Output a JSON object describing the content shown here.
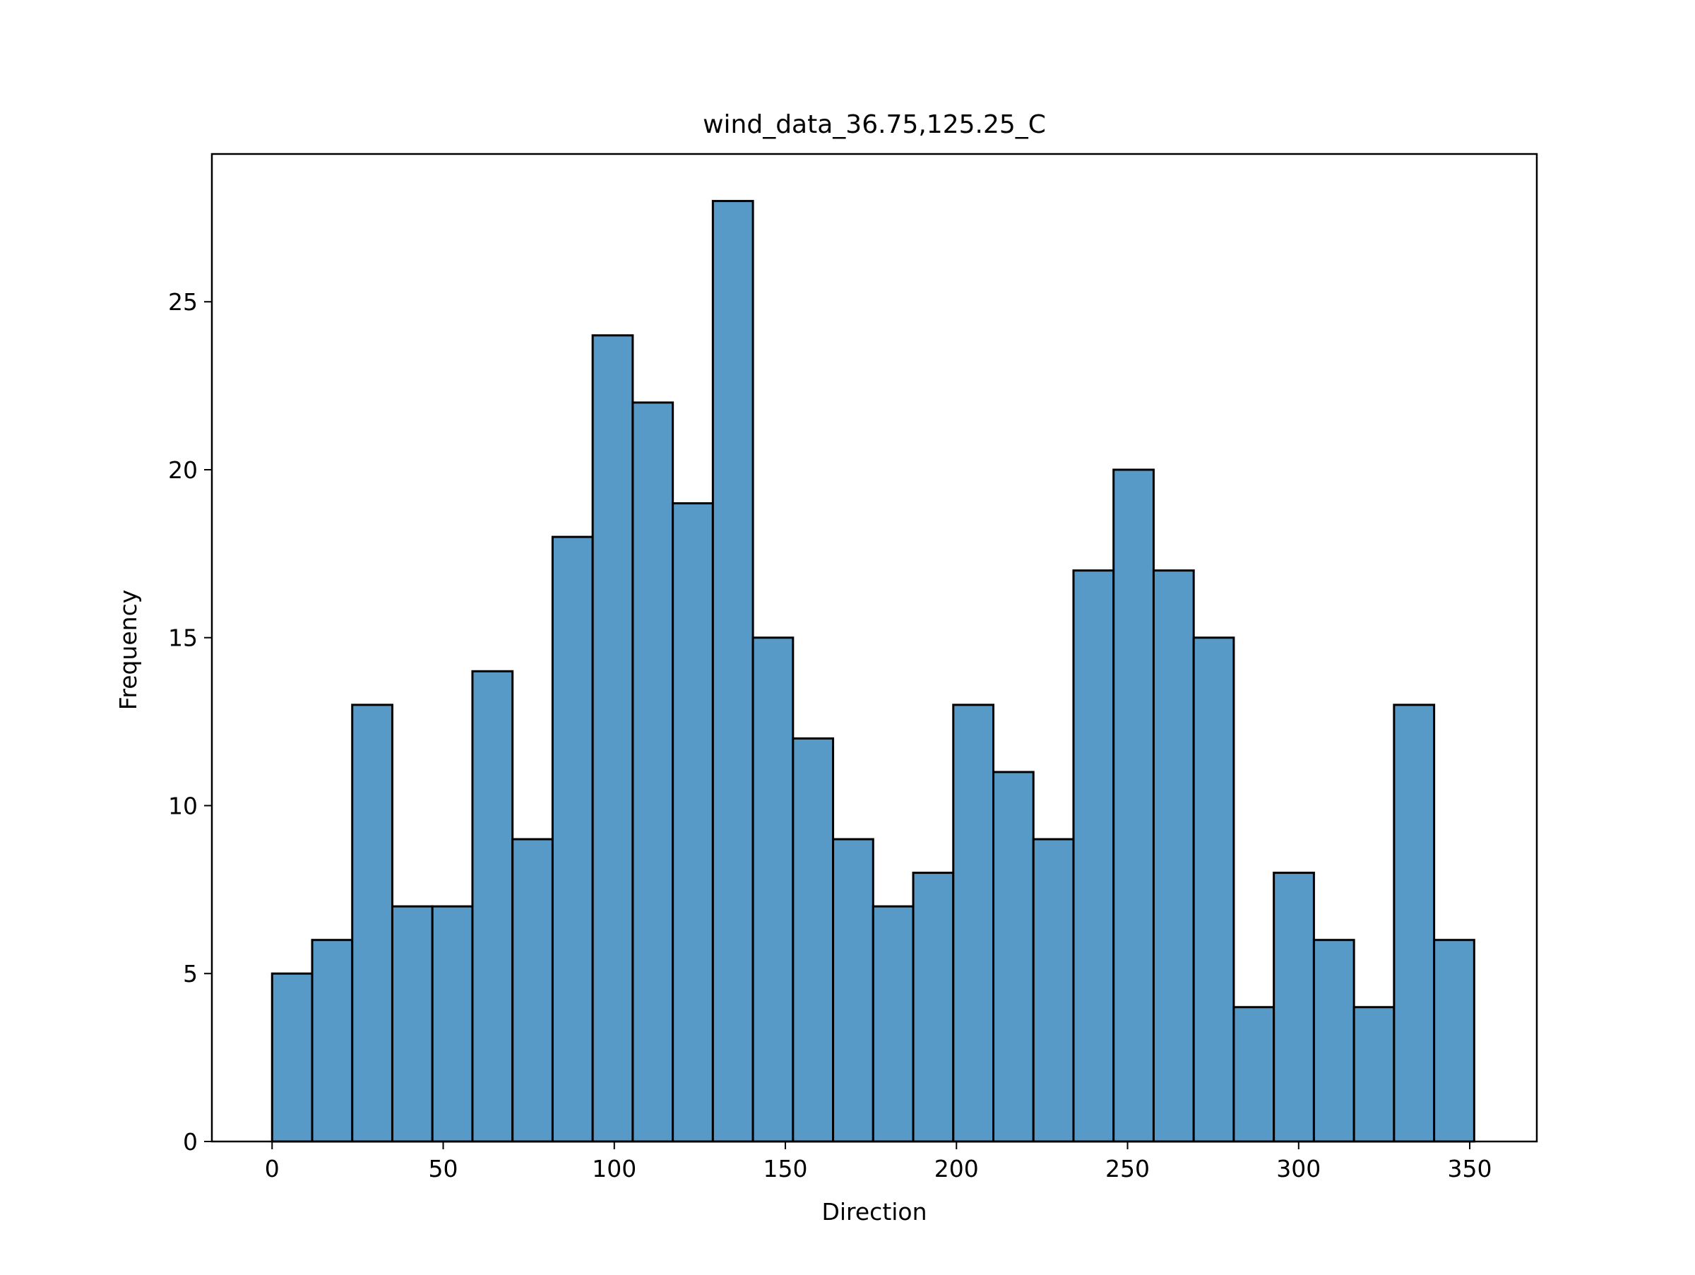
{
  "chart_data": {
    "type": "bar",
    "title": "wind_data_36.75,125.25_C",
    "xlabel": "Direction",
    "ylabel": "Frequency",
    "xlim": [
      -17.6,
      369.6
    ],
    "ylim": [
      0,
      29.4
    ],
    "x_ticks": [
      0,
      50,
      100,
      150,
      200,
      250,
      300,
      350
    ],
    "y_ticks": [
      0,
      5,
      10,
      15,
      20,
      25
    ],
    "grid": false,
    "bin_edges": [
      0,
      11.71,
      23.42,
      35.13,
      46.84,
      58.55,
      70.26,
      81.97,
      93.68,
      105.39,
      117.1,
      128.81,
      140.52,
      152.23,
      163.94,
      175.65,
      187.36,
      199.07,
      210.78,
      222.49,
      234.2,
      245.91,
      257.62,
      269.33,
      281.04,
      292.75,
      304.46,
      316.17,
      327.88,
      339.59,
      351.3
    ],
    "values": [
      5,
      6,
      13,
      7,
      7,
      14,
      9,
      18,
      24,
      22,
      19,
      28,
      15,
      12,
      9,
      7,
      8,
      13,
      11,
      9,
      17,
      20,
      17,
      15,
      4,
      8,
      6,
      4,
      13,
      6
    ],
    "colors": {
      "bar_fill": "#5799c7",
      "bar_edge": "#000000",
      "axes": "#000000"
    }
  }
}
